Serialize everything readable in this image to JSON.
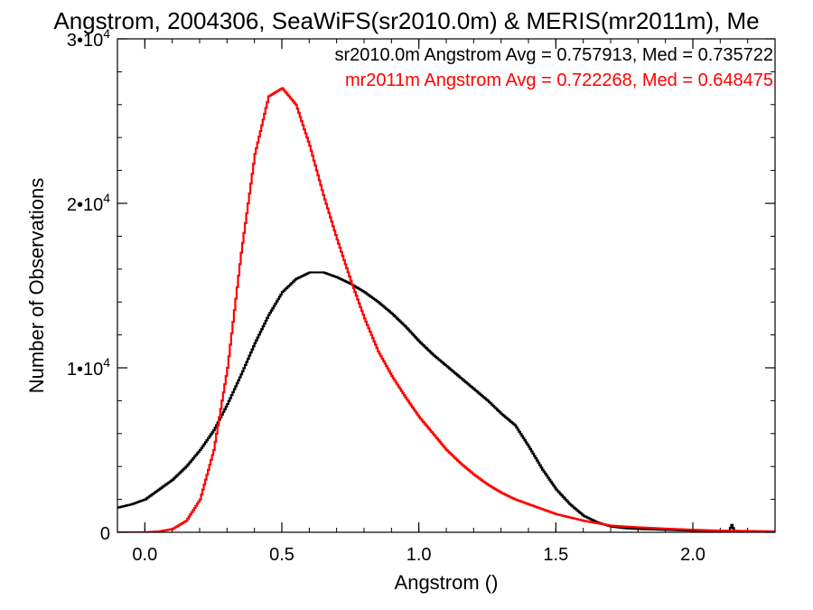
{
  "chart_data": {
    "type": "line",
    "title": "Angstrom, 2004306, SeaWiFS(sr2010.0m) & MERIS(mr2011m), Me",
    "xlabel": "Angstrom ()",
    "ylabel": "Number of Observations",
    "xlim": [
      -0.1,
      2.3
    ],
    "ylim": [
      0,
      30000
    ],
    "x_ticks": [
      0.0,
      0.5,
      1.0,
      1.5,
      2.0
    ],
    "x_tick_labels": [
      "0.0",
      "0.5",
      "1.0",
      "1.5",
      "2.0"
    ],
    "y_ticks": [
      0,
      10000,
      20000,
      30000
    ],
    "y_tick_labels": [
      {
        "base": "0",
        "exp": ""
      },
      {
        "base": "1•10",
        "exp": "4"
      },
      {
        "base": "2•10",
        "exp": "4"
      },
      {
        "base": "3•10",
        "exp": "4"
      }
    ],
    "grid": false,
    "step": true,
    "annotations": [
      {
        "text": "sr2010.0m Angstrom Avg = 0.757913, Med = 0.735722",
        "color": "#000000"
      },
      {
        "text": "mr2011m Angstrom Avg = 0.722268, Med = 0.648475",
        "color": "#ff0000"
      }
    ],
    "series": [
      {
        "color": "#000000",
        "x": [
          -0.1,
          -0.05,
          0.0,
          0.05,
          0.1,
          0.15,
          0.2,
          0.25,
          0.3,
          0.35,
          0.4,
          0.45,
          0.5,
          0.55,
          0.6,
          0.65,
          0.7,
          0.75,
          0.8,
          0.85,
          0.9,
          0.95,
          1.0,
          1.05,
          1.1,
          1.15,
          1.2,
          1.25,
          1.3,
          1.35,
          1.4,
          1.45,
          1.5,
          1.55,
          1.6,
          1.65,
          1.7,
          1.75,
          1.8,
          1.9,
          2.0,
          2.1,
          2.13,
          2.14,
          2.15,
          2.2,
          2.3
        ],
        "values": [
          1500,
          1700,
          2000,
          2600,
          3200,
          4000,
          5000,
          6200,
          7800,
          9600,
          11500,
          13200,
          14600,
          15400,
          15800,
          15800,
          15500,
          15100,
          14600,
          14000,
          13300,
          12500,
          11600,
          10800,
          10100,
          9400,
          8700,
          8000,
          7200,
          6500,
          5200,
          3800,
          2600,
          1700,
          1000,
          600,
          350,
          250,
          200,
          150,
          100,
          80,
          80,
          450,
          60,
          40,
          20
        ]
      },
      {
        "color": "#ff0000",
        "x": [
          -0.1,
          0.0,
          0.05,
          0.1,
          0.15,
          0.2,
          0.25,
          0.3,
          0.35,
          0.4,
          0.45,
          0.5,
          0.55,
          0.6,
          0.65,
          0.7,
          0.75,
          0.8,
          0.85,
          0.9,
          0.95,
          1.0,
          1.05,
          1.1,
          1.15,
          1.2,
          1.25,
          1.3,
          1.35,
          1.4,
          1.45,
          1.5,
          1.55,
          1.6,
          1.65,
          1.7,
          1.8,
          1.9,
          2.0,
          2.1,
          2.2,
          2.3
        ],
        "values": [
          0,
          0,
          50,
          200,
          700,
          2000,
          5000,
          10000,
          17000,
          23000,
          26500,
          27000,
          26000,
          23500,
          20500,
          17800,
          15300,
          13000,
          11000,
          9500,
          8200,
          7000,
          6000,
          5000,
          4200,
          3500,
          2900,
          2400,
          2000,
          1700,
          1400,
          1100,
          900,
          700,
          550,
          400,
          300,
          220,
          150,
          100,
          80,
          50
        ]
      }
    ]
  }
}
